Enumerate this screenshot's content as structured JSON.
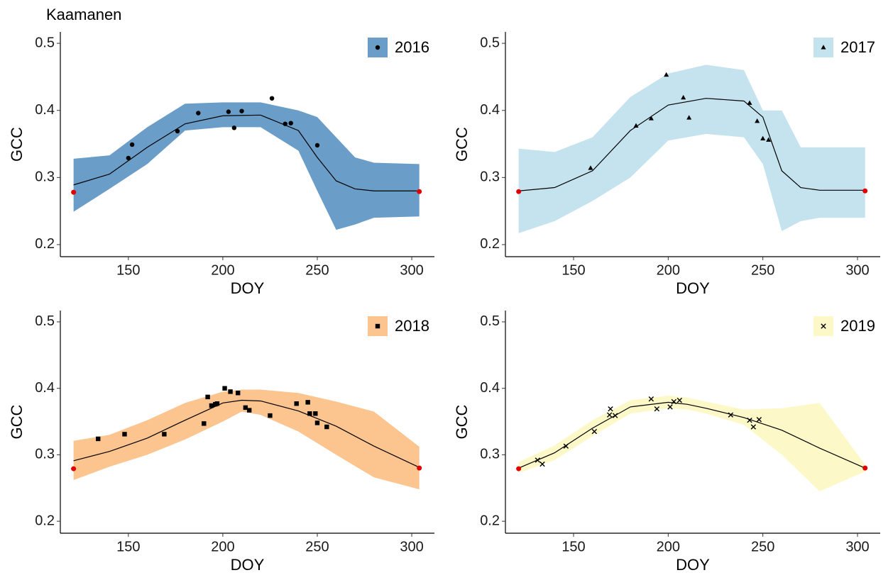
{
  "chart_data": [
    {
      "type": "scatter",
      "title": "Kaamanen",
      "xlabel": "DOY",
      "ylabel": "GCC",
      "xlim": [
        114,
        312
      ],
      "ylim": [
        0.182,
        0.517
      ],
      "xticks": [
        150,
        200,
        250,
        300
      ],
      "yticks": [
        0.2,
        0.3,
        0.4,
        0.5
      ],
      "legend": "top-right",
      "grid": false,
      "series": [
        {
          "name": "2016",
          "color": "#6a9ec9",
          "point_color": "#000000",
          "marker": "circle",
          "x": [
            150,
            152,
            176,
            187,
            203,
            206,
            210,
            226,
            233,
            236,
            250
          ],
          "values": [
            0.329,
            0.349,
            0.369,
            0.396,
            0.398,
            0.374,
            0.399,
            0.418,
            0.38,
            0.381,
            0.348
          ]
        }
      ],
      "fit": {
        "color": "#000000",
        "x": [
          121,
          140,
          160,
          180,
          200,
          220,
          240,
          250,
          260,
          270,
          280,
          304
        ],
        "values": [
          0.289,
          0.305,
          0.345,
          0.38,
          0.392,
          0.393,
          0.37,
          0.33,
          0.295,
          0.283,
          0.28,
          0.28
        ],
        "lower": [
          0.249,
          0.283,
          0.32,
          0.37,
          0.375,
          0.375,
          0.34,
          0.28,
          0.222,
          0.23,
          0.24,
          0.242
        ],
        "upper": [
          0.328,
          0.333,
          0.375,
          0.41,
          0.412,
          0.412,
          0.4,
          0.39,
          0.36,
          0.33,
          0.322,
          0.32
        ]
      },
      "endpoints": {
        "color": "#e00000",
        "x": [
          121,
          304
        ],
        "values": [
          0.278,
          0.279
        ]
      }
    },
    {
      "type": "scatter",
      "xlabel": "DOY",
      "ylabel": "GCC",
      "xlim": [
        114,
        312
      ],
      "ylim": [
        0.182,
        0.517
      ],
      "xticks": [
        150,
        200,
        250,
        300
      ],
      "yticks": [
        0.2,
        0.3,
        0.4,
        0.5
      ],
      "legend": "top-right",
      "grid": false,
      "series": [
        {
          "name": "2017",
          "color": "#c5e3ef",
          "point_color": "#000000",
          "marker": "triangle",
          "x": [
            159,
            183,
            191,
            199,
            208,
            211,
            243,
            247,
            250,
            253
          ],
          "values": [
            0.314,
            0.377,
            0.388,
            0.453,
            0.419,
            0.389,
            0.411,
            0.384,
            0.358,
            0.356
          ]
        }
      ],
      "fit": {
        "color": "#000000",
        "x": [
          121,
          140,
          160,
          180,
          200,
          220,
          240,
          250,
          260,
          270,
          280,
          304
        ],
        "values": [
          0.28,
          0.285,
          0.31,
          0.37,
          0.408,
          0.418,
          0.414,
          0.39,
          0.31,
          0.285,
          0.281,
          0.281
        ],
        "lower": [
          0.217,
          0.235,
          0.265,
          0.3,
          0.355,
          0.365,
          0.36,
          0.32,
          0.22,
          0.235,
          0.24,
          0.24
        ],
        "upper": [
          0.343,
          0.338,
          0.36,
          0.42,
          0.455,
          0.468,
          0.46,
          0.4,
          0.4,
          0.345,
          0.345,
          0.345
        ]
      },
      "endpoints": {
        "color": "#e00000",
        "x": [
          121,
          304
        ],
        "values": [
          0.279,
          0.28
        ]
      }
    },
    {
      "type": "scatter",
      "xlabel": "DOY",
      "ylabel": "GCC",
      "xlim": [
        114,
        312
      ],
      "ylim": [
        0.182,
        0.517
      ],
      "xticks": [
        150,
        200,
        250,
        300
      ],
      "yticks": [
        0.2,
        0.3,
        0.4,
        0.5
      ],
      "legend": "top-right",
      "grid": false,
      "series": [
        {
          "name": "2018",
          "color": "#fcc48f",
          "point_color": "#000000",
          "marker": "square",
          "x": [
            134,
            148,
            169,
            190,
            192,
            194,
            196,
            197,
            201,
            204,
            208,
            212,
            214,
            225,
            239,
            245,
            246,
            249,
            250,
            255
          ],
          "values": [
            0.324,
            0.331,
            0.331,
            0.347,
            0.387,
            0.374,
            0.376,
            0.377,
            0.4,
            0.395,
            0.393,
            0.371,
            0.367,
            0.359,
            0.377,
            0.379,
            0.362,
            0.362,
            0.348,
            0.342
          ]
        }
      ],
      "fit": {
        "color": "#000000",
        "x": [
          121,
          140,
          160,
          180,
          200,
          210,
          220,
          240,
          260,
          280,
          304
        ],
        "values": [
          0.291,
          0.305,
          0.325,
          0.352,
          0.378,
          0.382,
          0.381,
          0.366,
          0.343,
          0.313,
          0.281
        ],
        "lower": [
          0.262,
          0.282,
          0.3,
          0.323,
          0.35,
          0.365,
          0.36,
          0.335,
          0.3,
          0.266,
          0.248
        ],
        "upper": [
          0.321,
          0.33,
          0.352,
          0.378,
          0.395,
          0.398,
          0.398,
          0.393,
          0.38,
          0.365,
          0.312
        ]
      },
      "endpoints": {
        "color": "#e00000",
        "x": [
          121,
          304
        ],
        "values": [
          0.279,
          0.28
        ]
      }
    },
    {
      "type": "scatter",
      "xlabel": "DOY",
      "ylabel": "GCC",
      "xlim": [
        114,
        312
      ],
      "ylim": [
        0.182,
        0.517
      ],
      "xticks": [
        150,
        200,
        250,
        300
      ],
      "yticks": [
        0.2,
        0.3,
        0.4,
        0.5
      ],
      "legend": "top-right",
      "grid": false,
      "series": [
        {
          "name": "2019",
          "color": "#fdf8c8",
          "point_color": "#000000",
          "marker": "x",
          "x": [
            131,
            133.5,
            146,
            161,
            169,
            169.5,
            172,
            191,
            194,
            201,
            203,
            206,
            233,
            243,
            245,
            248
          ],
          "values": [
            0.292,
            0.286,
            0.313,
            0.335,
            0.36,
            0.369,
            0.359,
            0.384,
            0.369,
            0.372,
            0.38,
            0.382,
            0.36,
            0.352,
            0.342,
            0.353
          ]
        }
      ],
      "fit": {
        "color": "#000000",
        "x": [
          121,
          140,
          160,
          180,
          200,
          210,
          220,
          240,
          260,
          280,
          304
        ],
        "values": [
          0.28,
          0.303,
          0.34,
          0.372,
          0.379,
          0.376,
          0.37,
          0.356,
          0.337,
          0.31,
          0.28
        ],
        "lower": [
          0.273,
          0.292,
          0.328,
          0.362,
          0.37,
          0.368,
          0.362,
          0.345,
          0.3,
          0.245,
          0.275
        ],
        "upper": [
          0.289,
          0.314,
          0.352,
          0.382,
          0.389,
          0.386,
          0.38,
          0.368,
          0.37,
          0.378,
          0.285
        ]
      },
      "endpoints": {
        "color": "#e00000",
        "x": [
          121,
          304
        ],
        "values": [
          0.279,
          0.28
        ]
      }
    }
  ]
}
